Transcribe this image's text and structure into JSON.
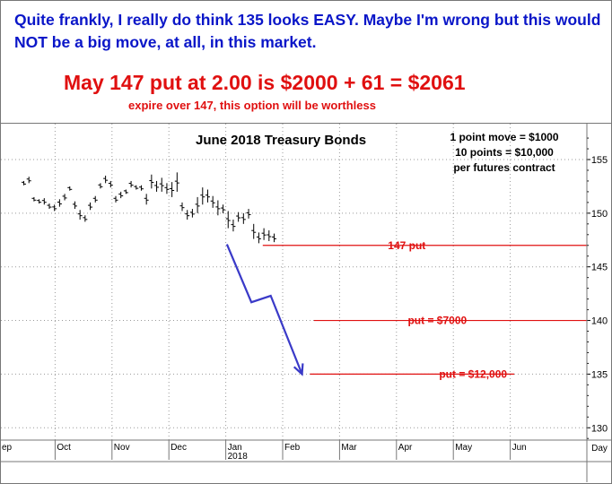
{
  "header": {
    "comment": "Quite frankly, I really do think 135 looks EASY. Maybe I'm wrong but this would NOT be a big move, at all, in this market.",
    "headline": "May 147 put at 2.00 is $2000 + 61 = $2061",
    "subline": "expire over 147, this option will be worthless"
  },
  "chart_data": {
    "type": "ohlc",
    "title": "June 2018 Treasury Bonds",
    "notes": [
      "1 point move = $1000",
      "10 points = $10,000",
      "per futures contract"
    ],
    "y_ticks": [
      130,
      135,
      140,
      145,
      150,
      155
    ],
    "ylim": [
      128.5,
      158
    ],
    "x_ticks": [
      "ep",
      "Oct",
      "Nov",
      "Dec",
      "Jan",
      "Feb",
      "Mar",
      "Apr",
      "May",
      "Jun"
    ],
    "x_year_label": "2018",
    "x_unit_label": "Day",
    "price_bars": [
      [
        152.6,
        153.0
      ],
      [
        152.8,
        153.4
      ],
      [
        151.1,
        151.5
      ],
      [
        150.9,
        151.3
      ],
      [
        150.8,
        151.4
      ],
      [
        150.4,
        150.9
      ],
      [
        150.2,
        150.8
      ],
      [
        150.6,
        151.3
      ],
      [
        151.2,
        151.8
      ],
      [
        152.1,
        152.5
      ],
      [
        150.4,
        151.1
      ],
      [
        149.4,
        150.3
      ],
      [
        149.2,
        149.8
      ],
      [
        150.3,
        151.0
      ],
      [
        151.0,
        151.6
      ],
      [
        152.3,
        152.8
      ],
      [
        152.8,
        153.5
      ],
      [
        152.4,
        153.0
      ],
      [
        151.0,
        151.6
      ],
      [
        151.4,
        152.0
      ],
      [
        151.8,
        152.2
      ],
      [
        152.4,
        153.0
      ],
      [
        152.2,
        152.6
      ],
      [
        152.1,
        152.6
      ],
      [
        150.8,
        151.8
      ],
      [
        152.3,
        153.6
      ],
      [
        152.0,
        153.0
      ],
      [
        152.0,
        153.3
      ],
      [
        151.8,
        152.8
      ],
      [
        151.5,
        152.9
      ],
      [
        152.0,
        153.8
      ],
      [
        150.2,
        151.0
      ],
      [
        149.4,
        150.3
      ],
      [
        149.6,
        150.4
      ],
      [
        150.0,
        151.5
      ],
      [
        150.8,
        152.4
      ],
      [
        151.0,
        152.2
      ],
      [
        150.5,
        151.6
      ],
      [
        149.8,
        151.2
      ],
      [
        150.0,
        150.8
      ],
      [
        148.6,
        150.2
      ],
      [
        148.3,
        149.4
      ],
      [
        149.2,
        150.1
      ],
      [
        149.0,
        150.0
      ],
      [
        149.5,
        150.4
      ],
      [
        147.6,
        149.0
      ],
      [
        147.2,
        148.2
      ],
      [
        147.5,
        148.6
      ],
      [
        147.4,
        148.4
      ],
      [
        147.3,
        148.1
      ]
    ],
    "levels": [
      {
        "value": 147,
        "label": "147 put"
      },
      {
        "value": 140,
        "label": "put = $7000"
      },
      {
        "value": 135,
        "label": "put = $12,000"
      }
    ],
    "projection_path": [
      {
        "month": 4.02,
        "price": 147.1
      },
      {
        "month": 4.45,
        "price": 141.7
      },
      {
        "month": 4.79,
        "price": 142.3
      },
      {
        "month": 5.34,
        "price": 135.0
      }
    ],
    "colors": {
      "levels": "#e01010",
      "projection": "#3a3ac8",
      "comment": "#0a16c8"
    }
  }
}
